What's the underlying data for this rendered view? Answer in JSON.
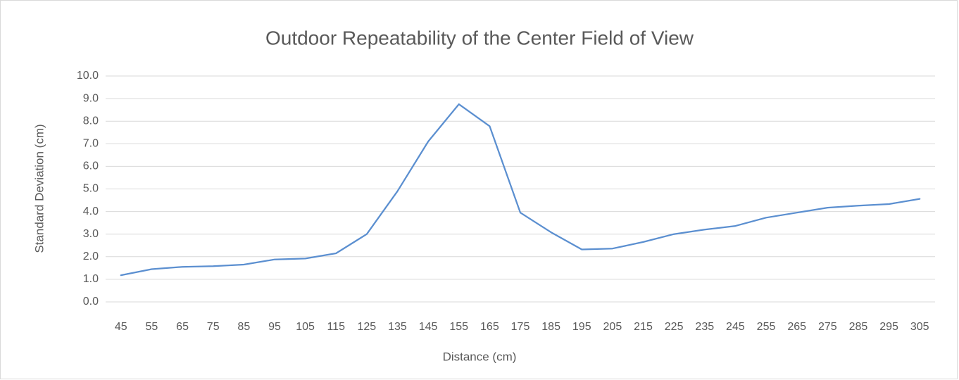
{
  "chart_data": {
    "type": "line",
    "title": "Outdoor Repeatability of the Center Field of View",
    "x_label": "Distance (cm)",
    "y_label": "Standard Deviation (cm)",
    "categories": [
      45,
      55,
      65,
      75,
      85,
      95,
      105,
      115,
      125,
      135,
      145,
      155,
      165,
      175,
      185,
      195,
      205,
      215,
      225,
      235,
      245,
      255,
      265,
      275,
      285,
      295,
      305
    ],
    "series": [
      {
        "name": "Standard Deviation",
        "color": "#5b8fd0",
        "values": [
          1.18,
          1.45,
          1.55,
          1.58,
          1.65,
          1.88,
          1.92,
          2.15,
          3.0,
          4.9,
          7.1,
          8.75,
          7.78,
          3.95,
          3.08,
          2.32,
          2.36,
          2.65,
          3.0,
          3.2,
          3.36,
          3.73,
          3.95,
          4.17,
          4.26,
          4.33,
          4.56
        ]
      }
    ],
    "ylim": [
      0,
      10
    ],
    "yticks": [
      {
        "value": 0,
        "label": "0.0"
      },
      {
        "value": 1,
        "label": "1.0"
      },
      {
        "value": 2,
        "label": "2.0"
      },
      {
        "value": 3,
        "label": "3.0"
      },
      {
        "value": 4,
        "label": "4.0"
      },
      {
        "value": 5,
        "label": "5.0"
      },
      {
        "value": 6,
        "label": "6.0"
      },
      {
        "value": 7,
        "label": "7.0"
      },
      {
        "value": 8,
        "label": "8.0"
      },
      {
        "value": 9,
        "label": "9.0"
      },
      {
        "value": 10,
        "label": "10.0"
      }
    ],
    "grid": true
  }
}
